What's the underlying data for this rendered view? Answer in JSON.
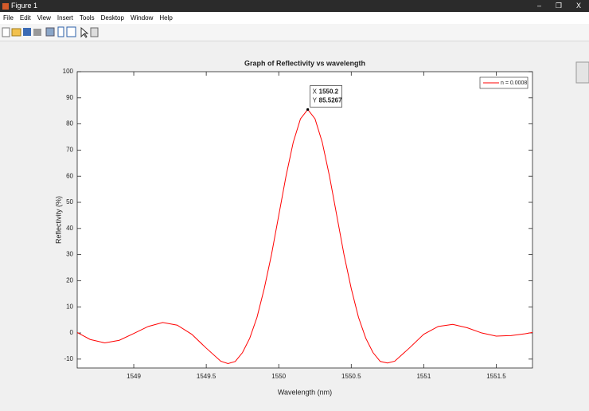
{
  "window": {
    "title": "Figure 1",
    "menu": [
      "File",
      "Edit",
      "View",
      "Insert",
      "Tools",
      "Desktop",
      "Window",
      "Help"
    ]
  },
  "chart_data": {
    "type": "line",
    "title": "Graph of Reflectivity vs wavelength",
    "x_label": "Wavelength (nm)",
    "y_label": "Reflectivity (%)",
    "x": [
      1548.6,
      1548.7,
      1548.8,
      1548.9,
      1549.0,
      1549.1,
      1549.2,
      1549.3,
      1549.4,
      1549.5,
      1549.6,
      1549.65,
      1549.7,
      1549.75,
      1549.8,
      1549.85,
      1549.9,
      1549.95,
      1550.0,
      1550.05,
      1550.1,
      1550.15,
      1550.2,
      1550.25,
      1550.3,
      1550.35,
      1550.4,
      1550.45,
      1550.5,
      1550.55,
      1550.6,
      1550.65,
      1550.7,
      1550.75,
      1550.8,
      1550.9,
      1551.0,
      1551.1,
      1551.2,
      1551.3,
      1551.4,
      1551.5,
      1551.6,
      1551.7,
      1551.75
    ],
    "series": [
      {
        "name": "n = 0.0008",
        "color": "#ff0000",
        "values": [
          0.5,
          -2.5,
          -3.8,
          -2.8,
          -0.2,
          2.5,
          4.0,
          3.0,
          -0.5,
          -5.8,
          -10.8,
          -11.7,
          -10.9,
          -7.5,
          -2,
          6,
          17,
          30,
          45,
          60,
          73,
          82,
          85.5267,
          82,
          73,
          60,
          45,
          30,
          17,
          6,
          -2,
          -7.5,
          -10.9,
          -11.5,
          -10.8,
          -5.8,
          -0.5,
          2.5,
          3.3,
          2.0,
          0,
          -1.2,
          -1.0,
          -0.3,
          0.2
        ]
      }
    ],
    "xlim": [
      1548.61,
      1551.75
    ],
    "ylim": [
      -13.4,
      100
    ],
    "xticks": [
      1549,
      1549.5,
      1550,
      1550.5,
      1551,
      1551.5
    ],
    "yticks": [
      -10,
      0,
      10,
      20,
      30,
      40,
      50,
      60,
      70,
      80,
      90,
      100
    ],
    "grid": false,
    "legend": "upper right",
    "datatip": {
      "x_label": "X",
      "x": 1550.2,
      "y_label": "Y",
      "y": 85.5267
    }
  }
}
